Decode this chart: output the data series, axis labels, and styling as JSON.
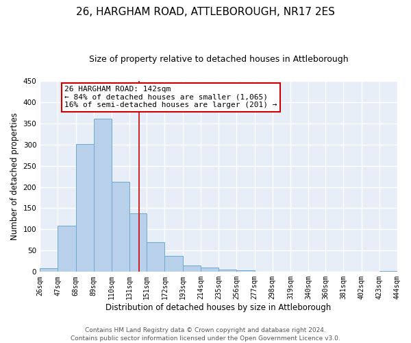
{
  "title": "26, HARGHAM ROAD, ATTLEBOROUGH, NR17 2ES",
  "subtitle": "Size of property relative to detached houses in Attleborough",
  "xlabel": "Distribution of detached houses by size in Attleborough",
  "ylabel": "Number of detached properties",
  "bin_edges": [
    26,
    47,
    68,
    89,
    110,
    131,
    151,
    172,
    193,
    214,
    235,
    256,
    277,
    298,
    319,
    340,
    360,
    381,
    402,
    423,
    444
  ],
  "bar_heights": [
    8,
    108,
    301,
    360,
    212,
    138,
    70,
    38,
    15,
    10,
    5,
    3,
    0,
    0,
    0,
    0,
    0,
    0,
    0,
    2
  ],
  "bar_color": "#b8d0ea",
  "bar_edgecolor": "#6aaad4",
  "vline_x": 142,
  "vline_color": "#cc0000",
  "ylim": [
    0,
    450
  ],
  "annotation_text": "26 HARGHAM ROAD: 142sqm\n← 84% of detached houses are smaller (1,065)\n16% of semi-detached houses are larger (201) →",
  "annotation_box_edgecolor": "#cc0000",
  "annotation_box_facecolor": "#ffffff",
  "footnote": "Contains HM Land Registry data © Crown copyright and database right 2024.\nContains public sector information licensed under the Open Government Licence v3.0.",
  "tick_labels": [
    "26sqm",
    "47sqm",
    "68sqm",
    "89sqm",
    "110sqm",
    "131sqm",
    "151sqm",
    "172sqm",
    "193sqm",
    "214sqm",
    "235sqm",
    "256sqm",
    "277sqm",
    "298sqm",
    "319sqm",
    "340sqm",
    "360sqm",
    "381sqm",
    "402sqm",
    "423sqm",
    "444sqm"
  ],
  "background_color": "#e8eef7",
  "grid_color": "#ffffff",
  "title_fontsize": 11,
  "subtitle_fontsize": 9,
  "axis_label_fontsize": 8.5,
  "tick_fontsize": 7,
  "annotation_fontsize": 8,
  "footnote_fontsize": 6.5
}
